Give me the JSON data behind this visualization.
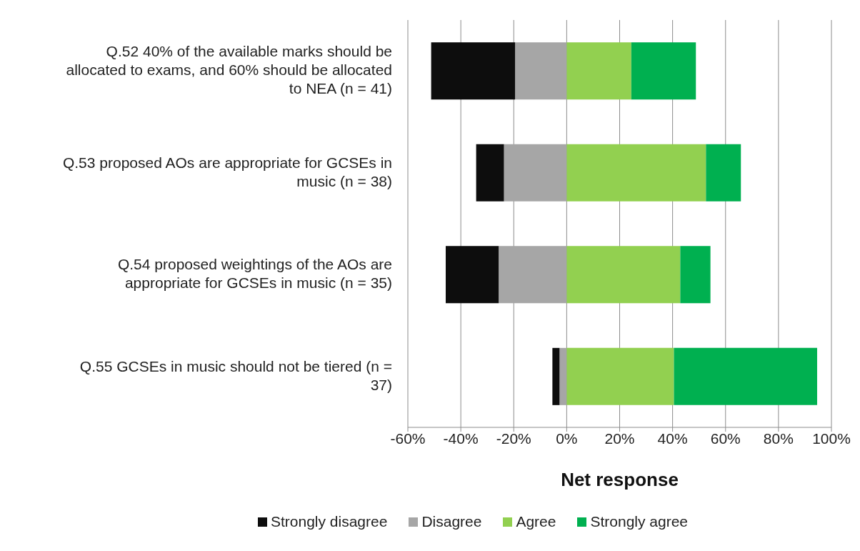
{
  "chart_data": {
    "type": "bar",
    "orientation": "horizontal",
    "stacked": true,
    "xlabel": "Net response",
    "categories": [
      "Q.52 40% of the available marks should be allocated to exams, and 60% should be allocated to NEA (n = 41)",
      "Q.53 proposed AOs are appropriate for GCSEs in music (n = 38)",
      "Q.54 proposed weightings of the AOs are appropriate for GCSEs in music (n = 35)",
      "Q.55 GCSEs in music should not be tiered (n = 37)"
    ],
    "series": [
      {
        "name": "Strongly disagree",
        "color": "#0d0d0d",
        "values": [
          -31.7,
          -10.5,
          -20.0,
          -2.7
        ]
      },
      {
        "name": "Disagree",
        "color": "#a6a6a6",
        "values": [
          -19.5,
          -23.7,
          -25.7,
          -2.7
        ]
      },
      {
        "name": "Agree",
        "color": "#92d050",
        "values": [
          24.4,
          52.6,
          42.9,
          40.5
        ]
      },
      {
        "name": "Strongly agree",
        "color": "#00b050",
        "values": [
          24.4,
          13.2,
          11.4,
          54.1
        ]
      }
    ],
    "xlim": [
      -60,
      100
    ],
    "xticks": [
      {
        "value": -60,
        "label": "-60%"
      },
      {
        "value": -40,
        "label": "-40%"
      },
      {
        "value": -20,
        "label": "-20%"
      },
      {
        "value": 0,
        "label": "0%"
      },
      {
        "value": 20,
        "label": "20%"
      },
      {
        "value": 40,
        "label": "40%"
      },
      {
        "value": 60,
        "label": "60%"
      },
      {
        "value": 80,
        "label": "80%"
      },
      {
        "value": 100,
        "label": "100%"
      }
    ],
    "grid": "x",
    "legend": "bottom"
  }
}
